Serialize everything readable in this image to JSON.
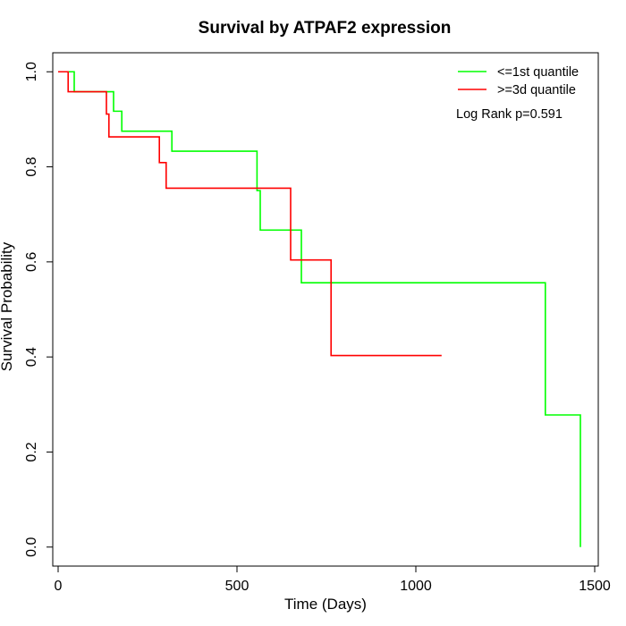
{
  "chart_data": {
    "type": "line",
    "title": "Survival by ATPAF2 expression",
    "xlabel": "Time (Days)",
    "ylabel": "Survival Probability",
    "xlim": [
      -15,
      1510
    ],
    "ylim": [
      -0.04,
      1.04
    ],
    "x_ticks": [
      0,
      500,
      1000,
      1500
    ],
    "y_ticks": [
      0.0,
      0.2,
      0.4,
      0.6,
      0.8,
      1.0
    ],
    "x_tick_labels": [
      "0",
      "500",
      "1000",
      "1500"
    ],
    "y_tick_labels": [
      "0.0",
      "0.2",
      "0.4",
      "0.6",
      "0.8",
      "1.0"
    ],
    "grid": false,
    "legend_position": "top-right",
    "annotation": "Log Rank p=0.591",
    "series": [
      {
        "name": "<=1st quantile",
        "color": "#00ff00",
        "steps": [
          [
            0,
            1.0
          ],
          [
            45,
            0.958
          ],
          [
            155,
            0.917
          ],
          [
            178,
            0.875
          ],
          [
            318,
            0.833
          ],
          [
            556,
            0.75
          ],
          [
            565,
            0.667
          ],
          [
            680,
            0.556
          ],
          [
            1362,
            0.278
          ],
          [
            1460,
            0.0
          ]
        ],
        "end_x": 1460
      },
      {
        "name": ">=3d quantile",
        "color": "#ff0000",
        "steps": [
          [
            0,
            1.0
          ],
          [
            28,
            0.958
          ],
          [
            135,
            0.911
          ],
          [
            142,
            0.863
          ],
          [
            283,
            0.809
          ],
          [
            302,
            0.755
          ],
          [
            650,
            0.604
          ],
          [
            763,
            0.403
          ]
        ],
        "end_x": 1072
      }
    ]
  }
}
